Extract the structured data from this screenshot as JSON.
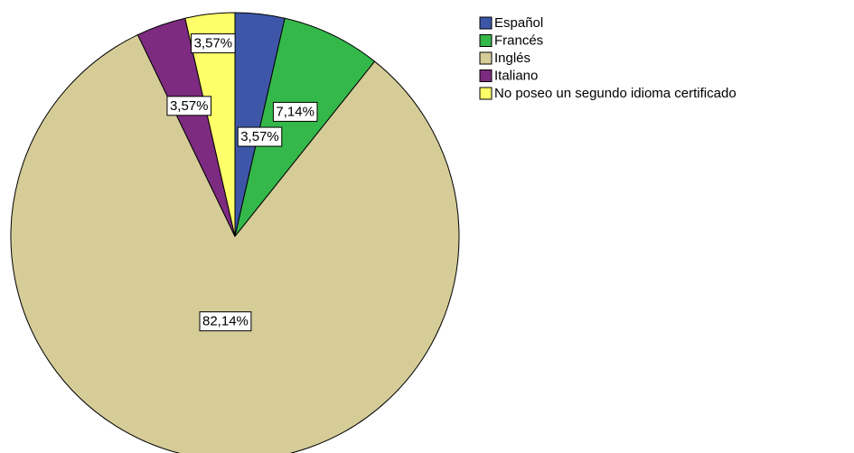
{
  "chart_data": {
    "type": "pie",
    "categories": [
      "Español",
      "Francés",
      "Inglés",
      "Italiano",
      "No poseo un segundo idioma certificado"
    ],
    "values": [
      3.57,
      7.14,
      82.14,
      3.57,
      3.57
    ],
    "value_labels": [
      "3,57%",
      "7,14%",
      "82,14%",
      "3,57%",
      "3,57%"
    ],
    "colors": [
      "#3e56a8",
      "#34b84a",
      "#d5cc98",
      "#7d2b80",
      "#ffff6a"
    ],
    "legend": "right"
  }
}
